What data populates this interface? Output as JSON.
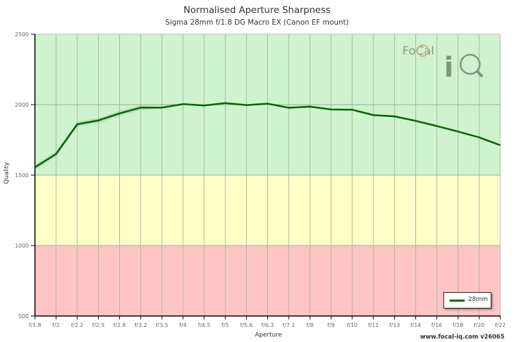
{
  "chart": {
    "title": "Normalised Aperture Sharpness",
    "subtitle": "Sigma 28mm f/1.8 DG Macro EX (Canon EF mount)",
    "ylabel": "Quality",
    "xlabel": "Aperture",
    "watermark": "www.focal-iq.com  v26065",
    "legend_label": "28mm",
    "logo_text": "FoCal",
    "colors": {
      "green_band": "#cff2cf",
      "yellow_band": "#ffffc8",
      "red_band": "#ffc4c4",
      "line": "#006400",
      "gridline": "#9fb89f"
    }
  },
  "chart_data": {
    "type": "line",
    "title": "Normalised Aperture Sharpness",
    "subtitle": "Sigma 28mm f/1.8 DG Macro EX (Canon EF mount)",
    "xlabel": "Aperture",
    "ylabel": "Quality",
    "ylim": [
      500,
      2500
    ],
    "yticks": [
      500,
      1000,
      1500,
      2000,
      2500
    ],
    "grid": true,
    "legend_position": "bottom-right",
    "bands": [
      {
        "from": 1500,
        "to": 2500,
        "color": "#cff2cf"
      },
      {
        "from": 1000,
        "to": 1500,
        "color": "#ffffc8"
      },
      {
        "from": 500,
        "to": 1000,
        "color": "#ffc4c4"
      }
    ],
    "categories": [
      "f/1.8",
      "f/2",
      "f/2.2",
      "f/2.5",
      "f/2.8",
      "f/3.2",
      "f/3.5",
      "f/4",
      "f/4.5",
      "f/5",
      "f/5.6",
      "f/6.3",
      "f/7.1",
      "f/8",
      "f/9",
      "f/10",
      "f/11",
      "f/13",
      "f/14",
      "f/16",
      "f/18",
      "f/20",
      "f/22"
    ],
    "series": [
      {
        "name": "28mm",
        "color": "#006400",
        "values": [
          1555,
          1650,
          1861,
          1888,
          1938,
          1979,
          1979,
          2004,
          1994,
          2011,
          1997,
          2007,
          1978,
          1986,
          1966,
          1964,
          1926,
          1917,
          1885,
          1848,
          1809,
          1768,
          1712
        ]
      }
    ]
  }
}
